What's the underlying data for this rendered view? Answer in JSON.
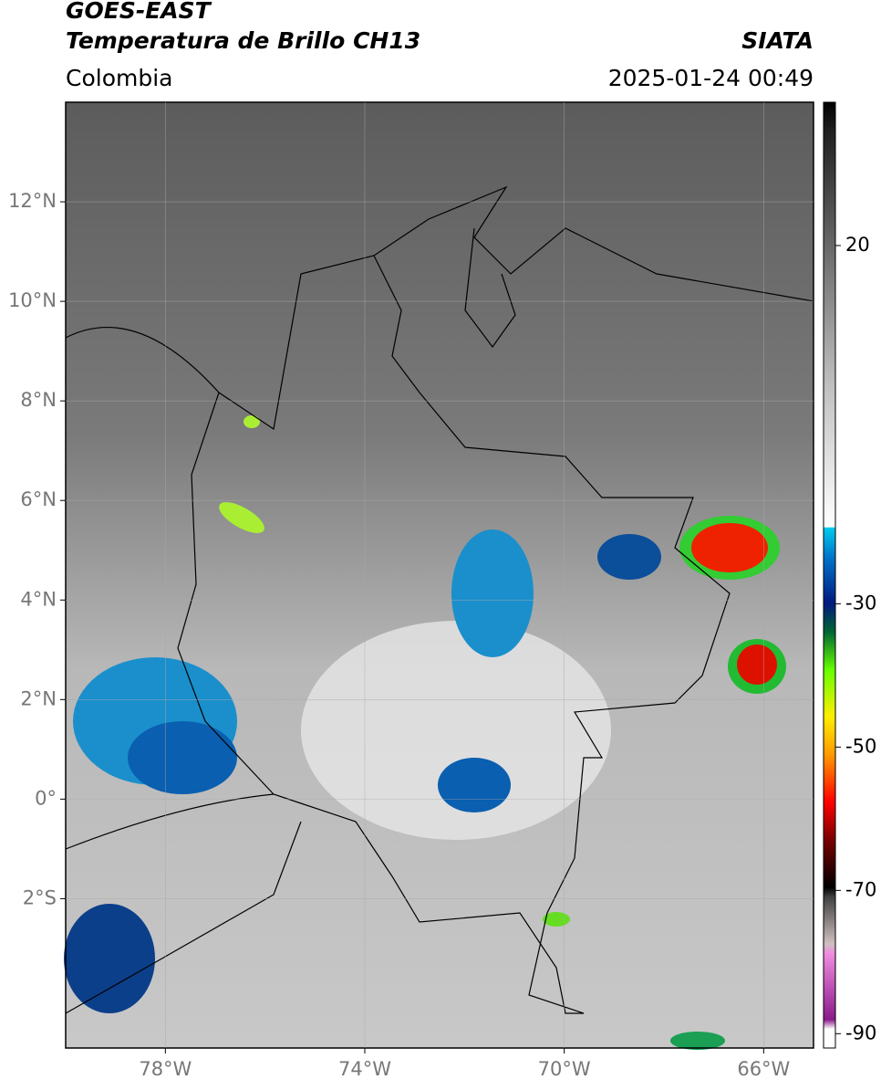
{
  "header": {
    "title": "GOES-EAST",
    "subtitle": "Temperatura de Brillo CH13",
    "source": "SIATA",
    "region": "Colombia",
    "datetime": "2025-01-24 00:49"
  },
  "map": {
    "latlim": [
      -5,
      14
    ],
    "lonlim": [
      -80,
      -65
    ],
    "lat_ticks": [
      {
        "value": 12,
        "label": "12°N"
      },
      {
        "value": 10,
        "label": "10°N"
      },
      {
        "value": 8,
        "label": "8°N"
      },
      {
        "value": 6,
        "label": "6°N"
      },
      {
        "value": 4,
        "label": "4°N"
      },
      {
        "value": 2,
        "label": "2°N"
      },
      {
        "value": 0,
        "label": "0°"
      },
      {
        "value": -2,
        "label": "2°S"
      }
    ],
    "lon_ticks": [
      {
        "value": -78,
        "label": "78°W"
      },
      {
        "value": -74,
        "label": "74°W"
      },
      {
        "value": -70,
        "label": "70°W"
      },
      {
        "value": -66,
        "label": "66°W"
      }
    ]
  },
  "colorbar": {
    "range": [
      -92,
      40
    ],
    "ticks": [
      20,
      -30,
      -50,
      -70,
      -90
    ]
  }
}
